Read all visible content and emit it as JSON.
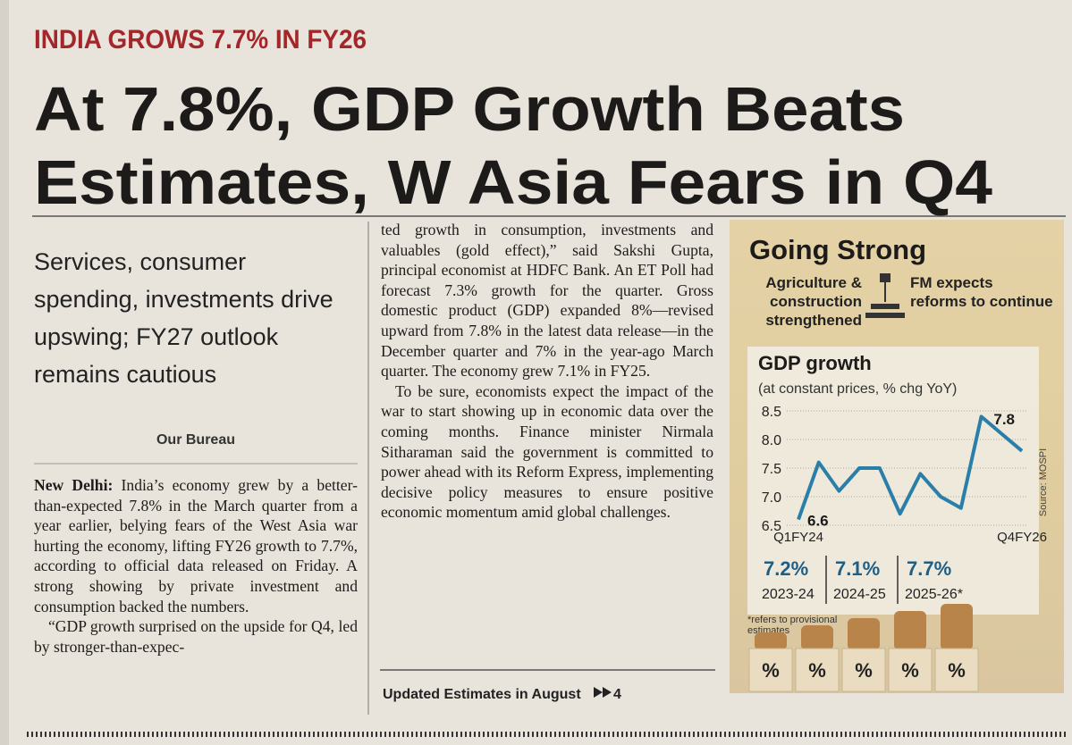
{
  "kicker": "INDIA GROWS 7.7% IN FY26",
  "headline": [
    "At 7.8%, GDP Growth Beats",
    "Estimates, W Asia Fears in Q4"
  ],
  "deck": "Services, consumer spending, investments drive upswing; FY27 outlook remains cautious",
  "byline": "Our Bureau",
  "dateline": "New Delhi:",
  "column1": [
    " India’s economy grew by a better-than-expected 7.8% in the March quarter from a year earlier, belying fears of the West Asia war hurting the economy, lifting FY26 growth to 7.7%, according to official data released on Friday. A strong showing by private investment and consumption backed the numbers.",
    "“GDP growth surprised on the upside for Q4, led by stronger-than-expec-"
  ],
  "column2": [
    "ted growth in consumption, investments and valuables (gold effect),” said Sakshi Gupta, principal economist at HDFC Bank. An ET Poll had forecast 7.3% growth for the quarter. Gross domestic product (GDP) expanded 8%—revised upward from 7.8% in the latest data release—in the December quarter and 7% in the year-ago March quarter. The economy grew 7.1% in FY25.",
    "To be sure, economists expect the impact of the war to start showing up in economic data over the coming months. Finance minister Nirmala Sitharaman said the government is committed to power ahead with its Reform Express, implementing decisive policy measures to ensure positive economic momentum amid global challenges."
  ],
  "refer": "Updated Estimates in August",
  "refer_page": "4",
  "sidebar": {
    "title": "Going Strong",
    "left_note": "Agriculture & construction strengthened",
    "right_note": "FM expects reforms to continue",
    "annual": [
      {
        "value": "7.2%",
        "year": "2023-24"
      },
      {
        "value": "7.1%",
        "year": "2024-25"
      },
      {
        "value": "7.7%",
        "year": "2025-26*"
      }
    ],
    "footnote": "*refers to provisional estimates",
    "blocks": [
      "%",
      "%",
      "%",
      "%",
      "%"
    ]
  },
  "chart_data": {
    "type": "line",
    "title": "GDP growth",
    "subtitle": "(at constant prices, % chg YoY)",
    "source": "Source: MOSPI",
    "categories": [
      "Q1FY24",
      null,
      null,
      null,
      null,
      null,
      null,
      null,
      null,
      null,
      null,
      "Q4FY26"
    ],
    "values": [
      6.6,
      7.6,
      7.1,
      7.5,
      7.5,
      6.7,
      7.4,
      7.0,
      6.8,
      8.4,
      8.1,
      7.8
    ],
    "value_labels": [
      "6.6",
      null,
      null,
      null,
      null,
      null,
      null,
      null,
      null,
      null,
      null,
      "7.8"
    ],
    "color": "#2a7fa8",
    "ylim": [
      6.5,
      8.5
    ],
    "yticks": [
      6.5,
      {
        "value": 7,
        "label": "7.0"
      },
      7.5,
      {
        "value": 8,
        "label": "8.0"
      },
      8.5
    ],
    "grid": true
  }
}
